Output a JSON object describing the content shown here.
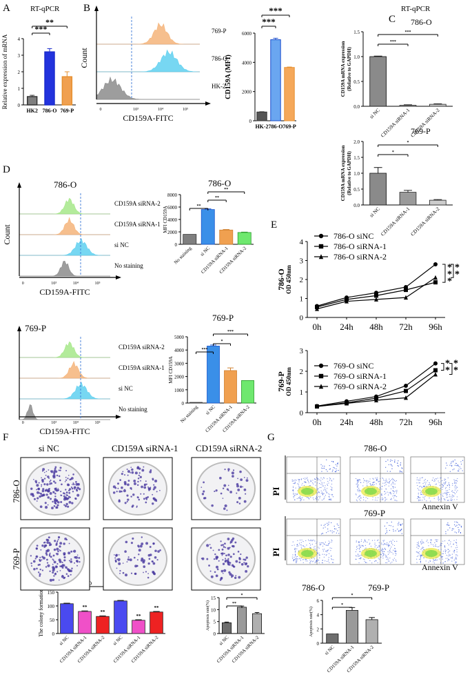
{
  "panel_letters": [
    "A",
    "B",
    "C",
    "D",
    "E",
    "F",
    "G"
  ],
  "headers": {
    "A": "RT-qPCR",
    "C": "RT-qPCR",
    "C_top": "786-O",
    "C_bottom": "769-P",
    "D_top": "786-O",
    "D_top_bar": "786-O",
    "D_bottom": "769-P",
    "D_bottom_bar": "769-P",
    "F_cols": [
      "si NC",
      "CD159A siRNA-1",
      "CD159A siRNA-2"
    ],
    "F_rows": [
      "786-O",
      "769-P"
    ],
    "G_top": "786-O",
    "G_mid": "769-P",
    "G_bar_left": "786-O",
    "G_bar_right": "769-P"
  },
  "flow": {
    "B": {
      "xlabel": "CD159A-FITC",
      "ylabel": "Count",
      "tracks": [
        "769-P",
        "786-O",
        "HK-2"
      ],
      "colors": [
        "#f5b47a",
        "#5fd0f0",
        "#8c8c8c"
      ],
      "ticks": [
        "0",
        "10³",
        "10⁴",
        "10⁵"
      ]
    },
    "D_top": {
      "xlabel": "CD159A-FITC",
      "ylabel": "Count",
      "tracks": [
        "CD159A siRNA-2",
        "CD159A siRNA-1",
        "si NC",
        "No staining"
      ],
      "colors": [
        "#a6e88a",
        "#f5b47a",
        "#5fd0f0",
        "#8c8c8c"
      ],
      "ticks": [
        "0",
        "10³",
        "10⁴",
        "10⁵"
      ]
    },
    "D_bottom": {
      "xlabel": "CD159A-FITC",
      "tracks": [
        "CD159A siRNA-2",
        "CD159A siRNA-1",
        "si NC",
        "No staining"
      ],
      "colors": [
        "#a6e88a",
        "#f5b47a",
        "#5fd0f0",
        "#8c8c8c"
      ],
      "ticks": [
        "0",
        "10³",
        "10⁴",
        "10⁵"
      ]
    }
  },
  "G_axes": {
    "y": "PI",
    "x": "Annexin V"
  },
  "chart_data": [
    {
      "id": "A",
      "type": "bar",
      "ylabel": "Relative expression of mRNA",
      "categories": [
        "HK2",
        "786-O",
        "769-P"
      ],
      "values": [
        0.5,
        3.2,
        1.7
      ],
      "errors": [
        0.08,
        0.2,
        0.3
      ],
      "colors": [
        "#7f7f7f",
        "#2233dd",
        "#f0a050"
      ],
      "ylim": [
        0,
        4
      ],
      "yticks": [
        "0",
        "1",
        "2",
        "3",
        "4"
      ],
      "sig": [
        "***",
        "**"
      ]
    },
    {
      "id": "B",
      "type": "bar",
      "ylabel": "CD159A (MFI)",
      "categories": [
        "HK-2",
        "786-O",
        "769-P"
      ],
      "values": [
        600,
        5550,
        3650
      ],
      "errors": [
        20,
        100,
        30
      ],
      "colors": [
        "#555555",
        "#6aa6f0",
        "#f5a85a"
      ],
      "ylim": [
        0,
        6000
      ],
      "yticks": [
        "0",
        "2000",
        "4000",
        "6000"
      ],
      "sig": [
        "***",
        "***"
      ]
    },
    {
      "id": "C_top",
      "type": "bar",
      "ylabel": "CD159A mRNA expression",
      "ylabel2": "(Relative to GAPDH)",
      "categories": [
        "si NC",
        "CD159A siRNA-1",
        "CD159A siRNA-2"
      ],
      "values": [
        1.0,
        0.02,
        0.04
      ],
      "errors": [
        0.01,
        0.01,
        0.01
      ],
      "ylim": [
        0,
        1.5
      ],
      "yticks": [
        "0.0",
        "0.5",
        "1.0",
        "1.5"
      ],
      "sig": [
        "***",
        "***"
      ]
    },
    {
      "id": "C_bottom",
      "type": "bar",
      "ylabel": "CD159A mRNA expression",
      "ylabel2": "(Relative to GAPDH)",
      "categories": [
        "si NC",
        "CD159A siRNA-1",
        "CD159A siRNA-2"
      ],
      "values": [
        1.0,
        0.4,
        0.15
      ],
      "errors": [
        0.18,
        0.06,
        0.02
      ],
      "ylim": [
        0,
        2.0
      ],
      "yticks": [
        "0.0",
        "0.5",
        "1.0",
        "1.5",
        "2.0"
      ],
      "sig": [
        "*",
        "*"
      ]
    },
    {
      "id": "D_top_bar",
      "type": "bar",
      "ylabel": "MFI CD159A",
      "categories": [
        "No staining",
        "si NC",
        "CD159A siRNA-1",
        "CD159A siRNA-2"
      ],
      "values": [
        1600,
        5600,
        2300,
        1900
      ],
      "errors": [
        0,
        100,
        80,
        60
      ],
      "colors": [
        "#7f7f7f",
        "#3a8fe8",
        "#f0a050",
        "#6ee86e"
      ],
      "ylim": [
        0,
        8000
      ],
      "yticks": [
        "0",
        "2000",
        "4000",
        "6000",
        "8000"
      ],
      "sig": [
        "**",
        "**",
        "**"
      ]
    },
    {
      "id": "D_bottom_bar",
      "type": "bar",
      "ylabel": "MFI CD159A",
      "categories": [
        "No staining",
        "si NC",
        "CD159A siRNA-1",
        "CD159A siRNA-2"
      ],
      "values": [
        50,
        4300,
        2450,
        1700
      ],
      "errors": [
        0,
        80,
        200,
        0
      ],
      "colors": [
        "#7f7f7f",
        "#3a8fe8",
        "#f0a050",
        "#6ee86e"
      ],
      "ylim": [
        0,
        5000
      ],
      "yticks": [
        "0",
        "1000",
        "2000",
        "3000",
        "4000",
        "5000"
      ],
      "sig": [
        "***",
        "*",
        "***"
      ]
    },
    {
      "id": "E_top",
      "type": "line",
      "ylabel": "OD 450nm",
      "ylabel2": "786-O",
      "x": [
        "0h",
        "24h",
        "48h",
        "72h",
        "96h"
      ],
      "ylim": [
        0,
        4
      ],
      "yticks": [
        "0",
        "1",
        "2",
        "3",
        "4"
      ],
      "series": [
        {
          "name": "786-O siNC",
          "marker": "circle",
          "values": [
            0.6,
            1.05,
            1.3,
            1.6,
            2.8
          ]
        },
        {
          "name": "786-O siRNA-1",
          "marker": "square",
          "values": [
            0.55,
            0.95,
            1.15,
            1.45,
            1.85
          ]
        },
        {
          "name": "786-O siRNA-2",
          "marker": "triangle",
          "values": [
            0.45,
            0.85,
            0.95,
            1.05,
            2.1
          ]
        }
      ],
      "sig": [
        "***",
        "**"
      ]
    },
    {
      "id": "E_bottom",
      "type": "line",
      "ylabel": "OD 450nm",
      "ylabel2": "769-P",
      "x": [
        "0h",
        "24h",
        "48h",
        "72h",
        "96h"
      ],
      "ylim": [
        0,
        3
      ],
      "yticks": [
        "0",
        "1",
        "2",
        "3"
      ],
      "series": [
        {
          "name": "769-O siNC",
          "marker": "circle",
          "values": [
            0.32,
            0.55,
            0.78,
            1.3,
            2.38
          ]
        },
        {
          "name": "769-O siRNA-1",
          "marker": "square",
          "values": [
            0.3,
            0.48,
            0.7,
            1.05,
            2.05
          ]
        },
        {
          "name": "769-O siRNA-2",
          "marker": "triangle",
          "values": [
            0.3,
            0.45,
            0.6,
            0.72,
            1.85
          ]
        }
      ],
      "sig": [
        "**",
        "**"
      ]
    },
    {
      "id": "F_bar",
      "type": "bar",
      "ylabel": "The colony formation",
      "categories": [
        "si NC",
        "CD159A siRNA-1",
        "CD159A siRNA-2",
        "si NC",
        "CD159A siRNA-1",
        "CD159A siRNA-2"
      ],
      "values": [
        108,
        80,
        62,
        118,
        48,
        78
      ],
      "errors": [
        2,
        2,
        2,
        2,
        2,
        2
      ],
      "colors": [
        "#4a4af0",
        "#f050c8",
        "#ee2222",
        "#4a4af0",
        "#f050c8",
        "#ee2222"
      ],
      "ylim": [
        0,
        150
      ],
      "yticks": [
        "0",
        "50",
        "100",
        "150"
      ],
      "group_labels": [
        "786-O",
        "769-P"
      ],
      "sig": [
        "",
        "**",
        "**",
        "",
        "**",
        "**"
      ]
    },
    {
      "id": "G_left",
      "type": "bar",
      "ylabel": "Apoptosis rate(%)",
      "categories": [
        "si NC",
        "CD159A siRNA-1",
        "CD159A siRNA-2"
      ],
      "values": [
        4.5,
        11,
        8.3
      ],
      "errors": [
        0.3,
        0.5,
        0.5
      ],
      "ylim": [
        0,
        15
      ],
      "yticks": [
        "0",
        "5",
        "10",
        "15"
      ],
      "sig": [
        "**",
        "*"
      ]
    },
    {
      "id": "G_right",
      "type": "bar",
      "ylabel": "Apoptosis rate(%)",
      "categories": [
        "si NC",
        "CD159A siRNA-1",
        "CD159A siRNA-2"
      ],
      "values": [
        1.3,
        4.6,
        3.3
      ],
      "errors": [
        0,
        0.4,
        0.3
      ],
      "ylim": [
        0,
        6
      ],
      "yticks": [
        "0",
        "2",
        "4",
        "6"
      ],
      "sig": [
        "*",
        "*"
      ]
    }
  ]
}
